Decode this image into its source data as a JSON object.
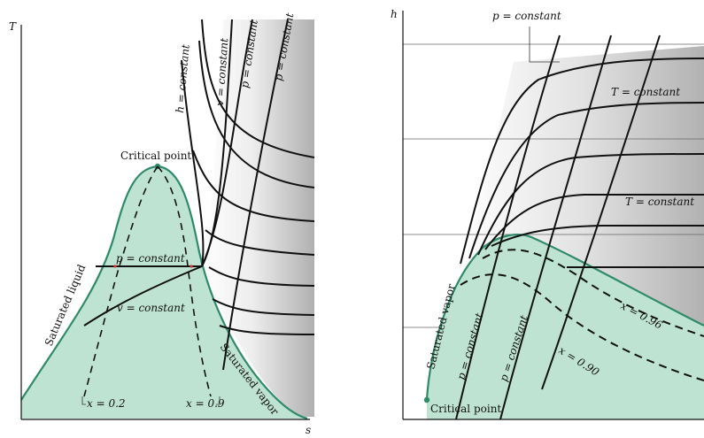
{
  "left_diagram": {
    "axis_y": "T",
    "axis_x": "s",
    "labels": {
      "critical_point": "Critical point",
      "saturated_liquid": "Saturated liquid",
      "saturated_vapor": "Saturated vapor",
      "p_constant": "p = constant",
      "v_constant": "v = constant",
      "h_constant": "h = constant",
      "v_constant_top": "v = constant",
      "p_constant_top1": "p = constant",
      "p_constant_top2": "p = constant",
      "x_02": "x = 0.2",
      "x_09": "x = 0.9"
    }
  },
  "right_diagram": {
    "axis_y": "h",
    "labels": {
      "p_constant_top": "p = constant",
      "T_constant_1": "T = constant",
      "T_constant_2": "T = constant",
      "saturated_vapor": "Saturated vapor",
      "critical_point": "Critical point",
      "p_constant_a": "p = constant",
      "p_constant_b": "p = constant",
      "x_096": "x = 0.96",
      "x_090": "x = 0.90"
    }
  },
  "colors": {
    "dome_fill": "#bfe3d2",
    "dome_stroke": "#2e8b6a",
    "shade_dark": "#b5b5b5"
  }
}
